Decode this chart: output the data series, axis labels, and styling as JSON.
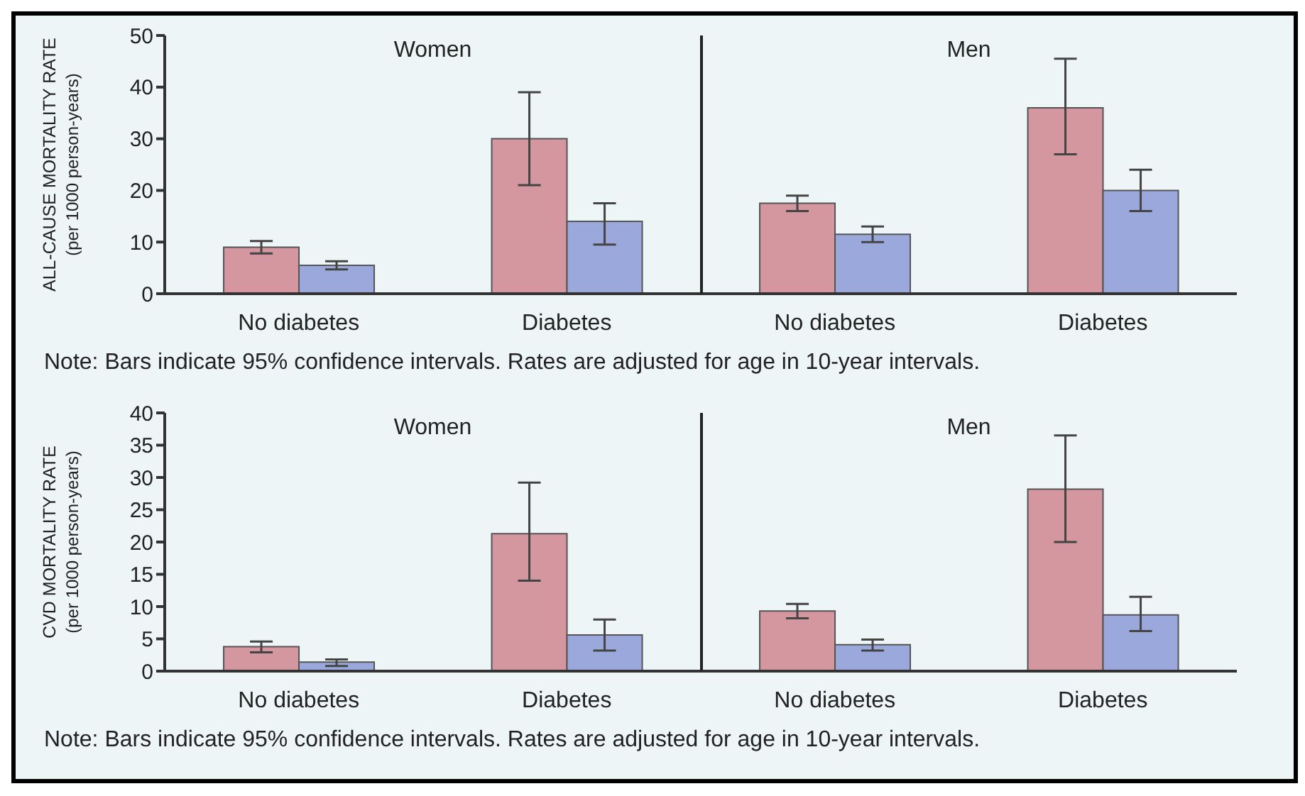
{
  "chart_data": [
    {
      "type": "bar",
      "ylabel": "ALL-CAUSE MORTALITY RATE\n(per 1000 person-years)",
      "categories": [
        "No diabetes",
        "Diabetes",
        "No diabetes",
        "Diabetes"
      ],
      "series": [
        {
          "color": "#d4969f",
          "values": [
            9,
            30,
            17.5,
            36
          ],
          "errors": [
            [
              7.8,
              10.2
            ],
            [
              21,
              39
            ],
            [
              16,
              19
            ],
            [
              27,
              45.5
            ]
          ]
        },
        {
          "color": "#9aa8dc",
          "values": [
            5.5,
            14,
            11.5,
            20
          ],
          "errors": [
            [
              4.7,
              6.3
            ],
            [
              9.5,
              17.5
            ],
            [
              10,
              13
            ],
            [
              16,
              24
            ]
          ]
        }
      ],
      "ylim": [
        0,
        50
      ],
      "yticks": [
        0,
        10,
        20,
        30,
        40,
        50
      ],
      "grid": false,
      "legend": false,
      "annotations": [
        "Women",
        "Men",
        "Note: Bars indicate 95% confidence intervals. Rates are adjusted for age in 10-year intervals."
      ]
    },
    {
      "type": "bar",
      "ylabel": "CVD MORTALITY RATE\n(per 1000 person-years)",
      "categories": [
        "No diabetes",
        "Diabetes",
        "No diabetes",
        "Diabetes"
      ],
      "series": [
        {
          "color": "#d4969f",
          "values": [
            3.8,
            21.3,
            9.3,
            28.2
          ],
          "errors": [
            [
              2.9,
              4.6
            ],
            [
              14,
              29.2
            ],
            [
              8.2,
              10.4
            ],
            [
              20,
              36.5
            ]
          ]
        },
        {
          "color": "#9aa8dc",
          "values": [
            1.4,
            5.6,
            4.1,
            8.7
          ],
          "errors": [
            [
              0.8,
              1.8
            ],
            [
              3.2,
              8
            ],
            [
              3.2,
              4.9
            ],
            [
              6.2,
              11.5
            ]
          ]
        }
      ],
      "ylim": [
        0,
        40
      ],
      "yticks": [
        0,
        5,
        10,
        15,
        20,
        25,
        30,
        35,
        40
      ],
      "grid": false,
      "legend": false,
      "annotations": [
        "Women",
        "Men",
        "Note: Bars indicate 95% confidence intervals. Rates are adjusted for age in 10-year intervals."
      ]
    }
  ]
}
